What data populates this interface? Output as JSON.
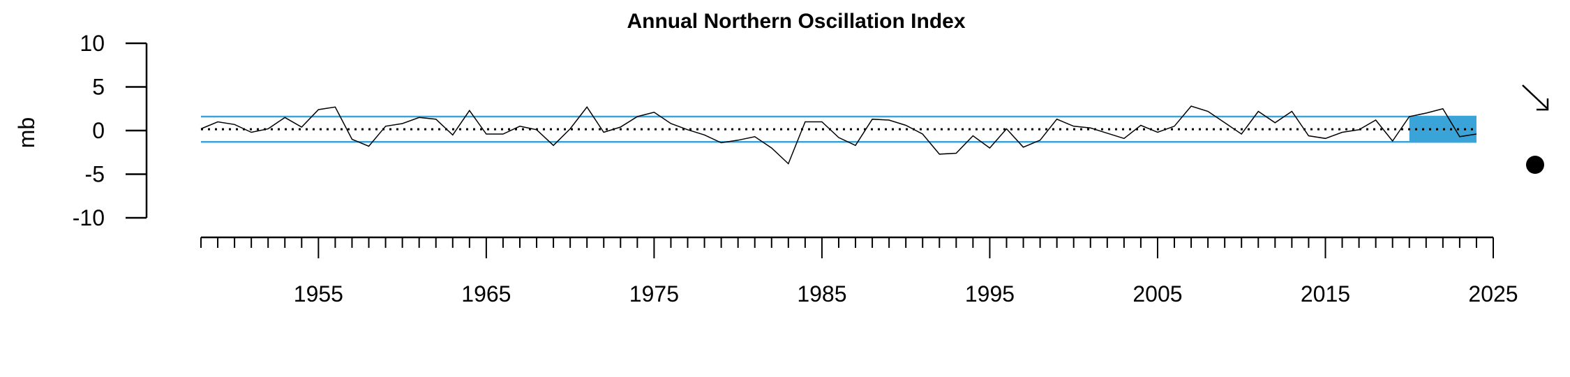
{
  "chart_data": {
    "type": "line",
    "title": "Annual Northern Oscillation Index",
    "xlabel": "",
    "ylabel": "mb",
    "xlim": [
      1948,
      2025
    ],
    "ylim": [
      -10,
      10
    ],
    "yticks": [
      10,
      5,
      0,
      -5,
      -10
    ],
    "xticks_labeled": [
      1955,
      1965,
      1975,
      1985,
      1995,
      2005,
      2015,
      2025
    ],
    "xtick_minor_step": 1,
    "mean": 0.15,
    "upper_band": 1.6,
    "lower_band": -1.3,
    "highlight_period": [
      2020,
      2024
    ],
    "trend_indicator": "arrow-down-right",
    "mean_indicator": "filled-circle",
    "colors": {
      "line": "#000000",
      "band": "#3aa4d8",
      "highlight": "#3aa4d8"
    },
    "x": [
      1948,
      1949,
      1950,
      1951,
      1952,
      1953,
      1954,
      1955,
      1956,
      1957,
      1958,
      1959,
      1960,
      1961,
      1962,
      1963,
      1964,
      1965,
      1966,
      1967,
      1968,
      1969,
      1970,
      1971,
      1972,
      1973,
      1974,
      1975,
      1976,
      1977,
      1978,
      1979,
      1980,
      1981,
      1982,
      1983,
      1984,
      1985,
      1986,
      1987,
      1988,
      1989,
      1990,
      1991,
      1992,
      1993,
      1994,
      1995,
      1996,
      1997,
      1998,
      1999,
      2000,
      2001,
      2002,
      2003,
      2004,
      2005,
      2006,
      2007,
      2008,
      2009,
      2010,
      2011,
      2012,
      2013,
      2014,
      2015,
      2016,
      2017,
      2018,
      2019,
      2020,
      2021,
      2022,
      2023,
      2024
    ],
    "series": [
      {
        "values": [
          0.2,
          1.0,
          0.7,
          -0.2,
          0.2,
          1.5,
          0.4,
          2.4,
          2.7,
          -1.0,
          -1.8,
          0.5,
          0.8,
          1.5,
          1.3,
          -0.5,
          2.3,
          -0.4,
          -0.4,
          0.5,
          0.1,
          -1.7,
          0.2,
          2.7,
          -0.2,
          0.4,
          1.6,
          2.1,
          0.8,
          0.1,
          -0.5,
          -1.4,
          -1.1,
          -0.7,
          -2.0,
          -3.8,
          1.0,
          1.0,
          -0.8,
          -1.7,
          1.3,
          1.2,
          0.6,
          -0.4,
          -2.7,
          -2.6,
          -0.6,
          -2.0,
          0.2,
          -1.9,
          -1.1,
          1.3,
          0.5,
          0.3,
          -0.3,
          -0.9,
          0.6,
          -0.2,
          0.5,
          2.8,
          2.2,
          0.9,
          -0.4,
          2.2,
          0.9,
          2.2,
          -0.6,
          -0.9,
          -0.2,
          0.1,
          1.2,
          -1.2,
          1.6,
          2.0,
          2.5,
          -0.7,
          -0.4
        ]
      }
    ]
  }
}
